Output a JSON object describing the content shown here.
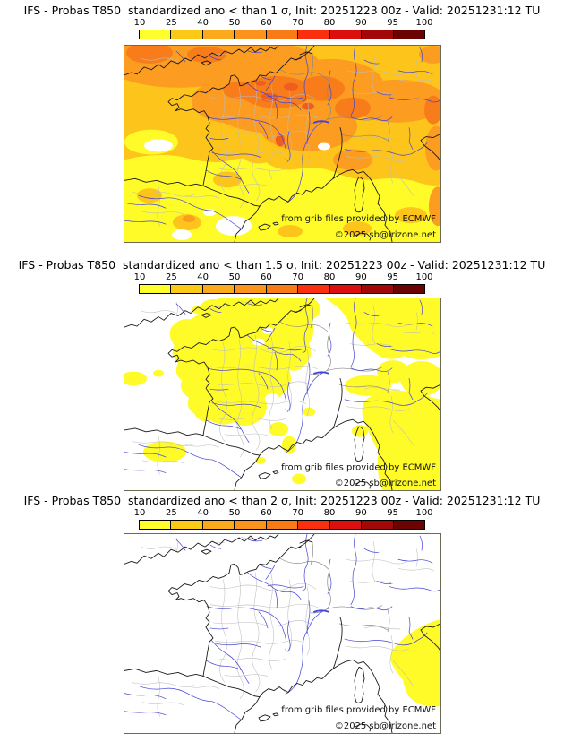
{
  "page": {
    "background": "#ffffff"
  },
  "colors": {
    "page-bg": "#ffffff",
    "text": "#000000",
    "map-frame": "#6b6b55",
    "coastline": "#1a1a1a",
    "border-country": "#8a8a8a",
    "border-admin": "#bdbdbd",
    "river": "#4343d6",
    "prob-lt10": "#ffffff",
    "prob-10-25": "#fffb28",
    "prob-25-40": "#fdc41c",
    "prob-40-60": "#fc9c20",
    "prob-60-70": "#f87c1a",
    "prob-70-80": "#ef5d21"
  },
  "colorbar": {
    "ticks": [
      "10",
      "25",
      "40",
      "50",
      "60",
      "70",
      "80",
      "90",
      "95",
      "100"
    ],
    "segment_colors": [
      "#ffff2e",
      "#fbc916",
      "#fbaa1c",
      "#fb931d",
      "#f97b16",
      "#f92f10",
      "#dc0e0e",
      "#a30808",
      "#6b0303"
    ]
  },
  "panels": [
    {
      "id": "sigma-1",
      "title": "IFS - Probas T850  standardized ano < than 1 σ, Init: 20251223 00z - Valid: 20251231:12 TU"
    },
    {
      "id": "sigma-1.5",
      "title": "IFS - Probas T850  standardized ano < than 1.5 σ, Init: 20251223 00z - Valid: 20251231:12 TU"
    },
    {
      "id": "sigma-2",
      "title": "IFS - Probas T850  standardized ano < than 2 σ, Init: 20251223 00z - Valid: 20251231:12 TU"
    }
  ],
  "attribution": {
    "source": "from grib files provided by ECMWF",
    "copyright": "©2025 sb@irizone.net"
  },
  "map_content": {
    "region": "France and surrounding Western Europe",
    "model": "IFS",
    "field": "Probas T850",
    "init": "20251223 00z",
    "valid": "20251231:12 TU",
    "panel_summaries": [
      "Probabilities 25-70%: orange shading over England, northern France, Benelux and Germany; 10-40% yellow/gold over southern France, Spain, Mediterranean and Italy; a few white spots below 10%",
      "Probabilities 10-25%: yellow patches over western and central France, the Channel, Germany, the Alps and Italy on a white (<10%) background",
      "Probability 10-25% only over central Italy (yellow); everywhere else below 10% (white)"
    ]
  }
}
